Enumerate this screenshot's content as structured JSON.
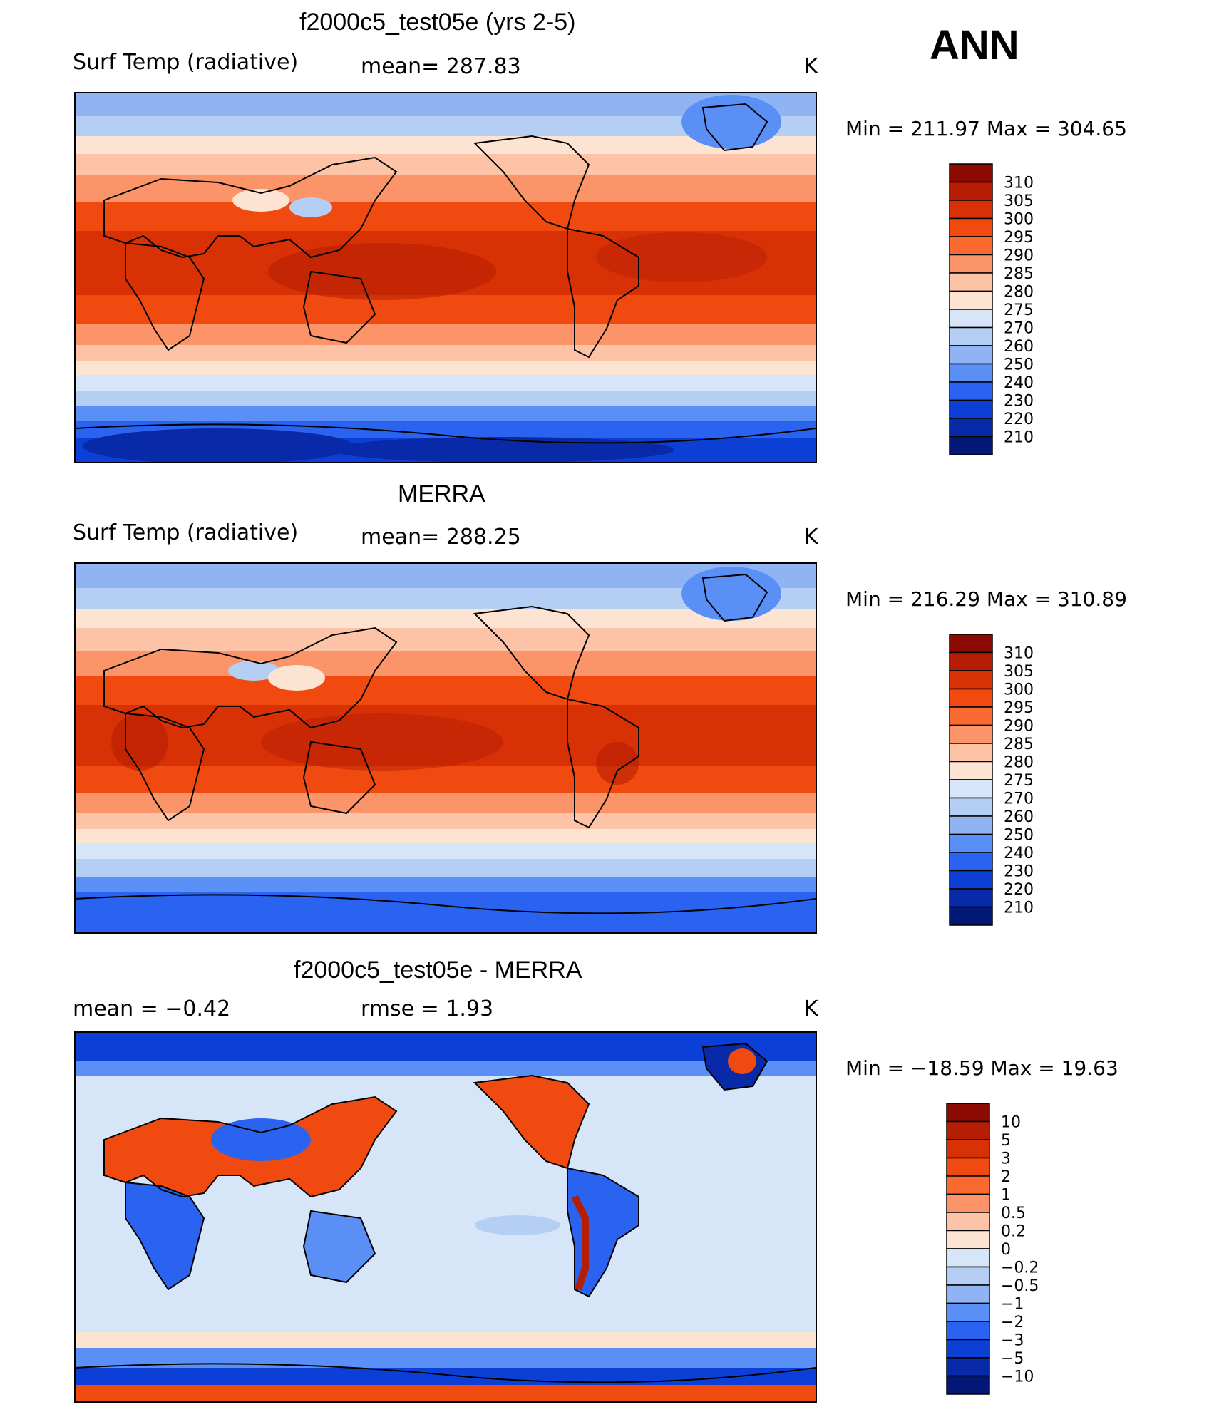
{
  "season": "ANN",
  "panels": [
    {
      "title": "f2000c5_test05e (yrs 2-5)",
      "variable": "Surf Temp (radiative)",
      "stat": "mean=  287.83",
      "units": "K",
      "minmax": "Min  =  211.97  Max  =  304.65"
    },
    {
      "title": "MERRA",
      "variable": "Surf Temp (radiative)",
      "stat": "mean=  288.25",
      "units": "K",
      "minmax": "Min  =  216.29  Max  =  310.89"
    },
    {
      "title": "f2000c5_test05e - MERRA",
      "variable": "mean  =    −0.42",
      "stat": "rmse  =     1.93",
      "units": "K",
      "minmax": "Min  =  −18.59  Max  =    19.63"
    }
  ],
  "colorbars": {
    "absolute": {
      "labels": [
        "310",
        "305",
        "300",
        "295",
        "290",
        "285",
        "280",
        "275",
        "270",
        "260",
        "250",
        "240",
        "230",
        "220",
        "210"
      ],
      "colors": [
        "#8b0a02",
        "#b51e04",
        "#d83106",
        "#f04a10",
        "#fa6a30",
        "#fb9468",
        "#fcc3a6",
        "#fde3d2",
        "#d6e6f8",
        "#b5cff4",
        "#8fb3f3",
        "#5a8ff5",
        "#2a63f0",
        "#0c3fd6",
        "#0829a8",
        "#021776"
      ]
    },
    "difference": {
      "labels": [
        "10",
        "5",
        "3",
        "2",
        "1",
        "0.5",
        "0.2",
        "0",
        "−0.2",
        "−0.5",
        "−1",
        "−2",
        "−3",
        "−5",
        "−10"
      ],
      "colors": [
        "#8b0a02",
        "#b51e04",
        "#d83106",
        "#f04a10",
        "#fa6a30",
        "#fb9468",
        "#fcc3a6",
        "#fde3d2",
        "#d6e6f8",
        "#b5cff4",
        "#8fb3f3",
        "#5a8ff5",
        "#2a63f0",
        "#0c3fd6",
        "#0829a8",
        "#021776"
      ]
    }
  }
}
